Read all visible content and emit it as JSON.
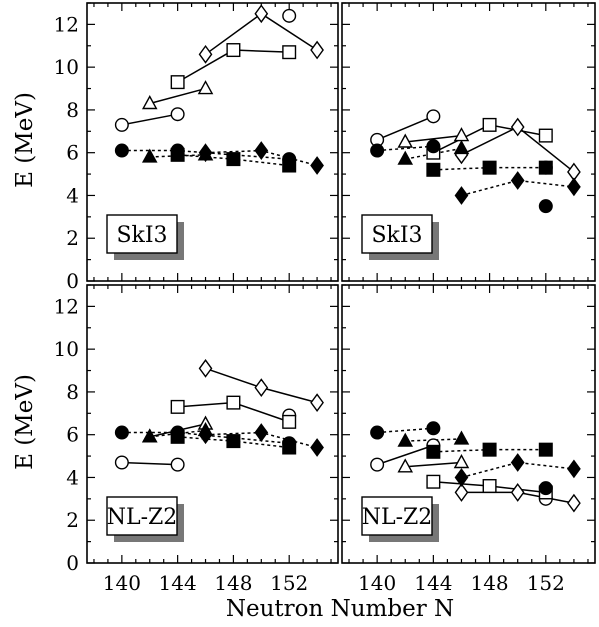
{
  "figure": {
    "ylabel": "E (MeV)",
    "xlabel": "Neutron Number N"
  },
  "colors": {
    "ink": "#000000",
    "paper": "#ffffff",
    "shadow": "#777777"
  },
  "chart_data": [
    {
      "type": "line",
      "panel": "top-left",
      "label": "SkI3",
      "xlim": [
        137.5,
        155.5
      ],
      "ylim": [
        0,
        13
      ],
      "xticks": [
        140,
        144,
        148,
        152
      ],
      "yticks": [
        0,
        2,
        4,
        6,
        8,
        10,
        12
      ],
      "grid": false,
      "series": [
        {
          "marker": "open-circle",
          "line": "solid",
          "x": [
            140,
            144
          ],
          "y": [
            7.3,
            7.8
          ]
        },
        {
          "marker": "open-circle",
          "line": "none",
          "x": [
            152
          ],
          "y": [
            12.4
          ]
        },
        {
          "marker": "open-triangle",
          "line": "solid",
          "x": [
            142,
            146
          ],
          "y": [
            8.3,
            9.0
          ]
        },
        {
          "marker": "open-square",
          "line": "solid",
          "x": [
            144,
            148,
            152
          ],
          "y": [
            9.3,
            10.8,
            10.7
          ]
        },
        {
          "marker": "open-diamond",
          "line": "solid",
          "x": [
            146,
            150,
            154
          ],
          "y": [
            10.6,
            12.5,
            10.8
          ]
        },
        {
          "marker": "filled-circle",
          "line": "dotted",
          "x": [
            140,
            144,
            152
          ],
          "y": [
            6.1,
            6.1,
            5.7
          ]
        },
        {
          "marker": "filled-triangle",
          "line": "dotted",
          "x": [
            142,
            146
          ],
          "y": [
            5.8,
            5.9
          ]
        },
        {
          "marker": "filled-square",
          "line": "dotted",
          "x": [
            144,
            148,
            152
          ],
          "y": [
            5.9,
            5.7,
            5.4
          ]
        },
        {
          "marker": "filled-diamond",
          "line": "dotted",
          "x": [
            146,
            150,
            154
          ],
          "y": [
            6.0,
            6.1,
            5.4
          ]
        }
      ]
    },
    {
      "type": "line",
      "panel": "top-right",
      "label": "SkI3",
      "xlim": [
        137.5,
        155.5
      ],
      "ylim": [
        0,
        13
      ],
      "xticks": [
        140,
        144,
        148,
        152
      ],
      "yticks": [
        0,
        2,
        4,
        6,
        8,
        10,
        12
      ],
      "grid": false,
      "series": [
        {
          "marker": "open-circle",
          "line": "solid",
          "x": [
            140,
            144
          ],
          "y": [
            6.6,
            7.7
          ]
        },
        {
          "marker": "open-circle",
          "line": "none",
          "x": [
            152
          ],
          "y": [
            5.3
          ]
        },
        {
          "marker": "open-triangle",
          "line": "solid",
          "x": [
            142,
            146
          ],
          "y": [
            6.5,
            6.8
          ]
        },
        {
          "marker": "open-square",
          "line": "solid",
          "x": [
            144,
            148,
            152
          ],
          "y": [
            6.0,
            7.3,
            6.8
          ]
        },
        {
          "marker": "open-diamond",
          "line": "solid",
          "x": [
            146,
            150,
            154
          ],
          "y": [
            5.9,
            7.2,
            5.1
          ]
        },
        {
          "marker": "filled-circle",
          "line": "dotted",
          "x": [
            140,
            144
          ],
          "y": [
            6.1,
            6.3
          ]
        },
        {
          "marker": "filled-circle",
          "line": "none",
          "x": [
            152
          ],
          "y": [
            3.5
          ]
        },
        {
          "marker": "filled-triangle",
          "line": "dotted",
          "x": [
            142,
            146
          ],
          "y": [
            5.7,
            6.2
          ]
        },
        {
          "marker": "filled-square",
          "line": "dotted",
          "x": [
            144,
            148,
            152
          ],
          "y": [
            5.2,
            5.3,
            5.3
          ]
        },
        {
          "marker": "filled-diamond",
          "line": "dotted",
          "x": [
            146,
            150,
            154
          ],
          "y": [
            4.0,
            4.7,
            4.4
          ]
        }
      ]
    },
    {
      "type": "line",
      "panel": "bottom-left",
      "label": "NL-Z2",
      "xlim": [
        137.5,
        155.5
      ],
      "ylim": [
        0,
        13
      ],
      "xticks": [
        140,
        144,
        148,
        152
      ],
      "yticks": [
        0,
        2,
        4,
        6,
        8,
        10,
        12
      ],
      "grid": false,
      "series": [
        {
          "marker": "open-circle",
          "line": "solid",
          "x": [
            140,
            144
          ],
          "y": [
            4.7,
            4.6
          ]
        },
        {
          "marker": "open-circle",
          "line": "none",
          "x": [
            152
          ],
          "y": [
            6.9
          ]
        },
        {
          "marker": "open-triangle",
          "line": "solid",
          "x": [
            142,
            146
          ],
          "y": [
            5.9,
            6.5
          ]
        },
        {
          "marker": "open-square",
          "line": "solid",
          "x": [
            144,
            148,
            152
          ],
          "y": [
            7.3,
            7.5,
            6.6
          ]
        },
        {
          "marker": "open-diamond",
          "line": "solid",
          "x": [
            146,
            150,
            154
          ],
          "y": [
            9.1,
            8.2,
            7.5
          ]
        },
        {
          "marker": "filled-circle",
          "line": "dotted",
          "x": [
            140,
            144,
            152
          ],
          "y": [
            6.1,
            6.1,
            5.6
          ]
        },
        {
          "marker": "filled-triangle",
          "line": "dotted",
          "x": [
            142,
            146
          ],
          "y": [
            5.9,
            6.2
          ]
        },
        {
          "marker": "filled-square",
          "line": "dotted",
          "x": [
            144,
            148,
            152
          ],
          "y": [
            5.9,
            5.7,
            5.4
          ]
        },
        {
          "marker": "filled-diamond",
          "line": "dotted",
          "x": [
            146,
            150,
            154
          ],
          "y": [
            6.0,
            6.1,
            5.4
          ]
        }
      ]
    },
    {
      "type": "line",
      "panel": "bottom-right",
      "label": "NL-Z2",
      "xlim": [
        137.5,
        155.5
      ],
      "ylim": [
        0,
        13
      ],
      "xticks": [
        140,
        144,
        148,
        152
      ],
      "yticks": [
        0,
        2,
        4,
        6,
        8,
        10,
        12
      ],
      "grid": false,
      "series": [
        {
          "marker": "open-circle",
          "line": "solid",
          "x": [
            140,
            144
          ],
          "y": [
            4.6,
            5.5
          ]
        },
        {
          "marker": "open-circle",
          "line": "none",
          "x": [
            152
          ],
          "y": [
            3.0
          ]
        },
        {
          "marker": "open-triangle",
          "line": "solid",
          "x": [
            142,
            146
          ],
          "y": [
            4.5,
            4.7
          ]
        },
        {
          "marker": "open-square",
          "line": "solid",
          "x": [
            144,
            148,
            152
          ],
          "y": [
            3.8,
            3.6,
            3.3
          ]
        },
        {
          "marker": "open-diamond",
          "line": "solid",
          "x": [
            146,
            150,
            154
          ],
          "y": [
            3.3,
            3.3,
            2.8
          ]
        },
        {
          "marker": "filled-circle",
          "line": "dotted",
          "x": [
            140,
            144
          ],
          "y": [
            6.1,
            6.3
          ]
        },
        {
          "marker": "filled-circle",
          "line": "none",
          "x": [
            152
          ],
          "y": [
            3.5
          ]
        },
        {
          "marker": "filled-triangle",
          "line": "dotted",
          "x": [
            142,
            146
          ],
          "y": [
            5.7,
            5.8
          ]
        },
        {
          "marker": "filled-square",
          "line": "dotted",
          "x": [
            144,
            148,
            152
          ],
          "y": [
            5.2,
            5.3,
            5.3
          ]
        },
        {
          "marker": "filled-diamond",
          "line": "dotted",
          "x": [
            146,
            150,
            154
          ],
          "y": [
            4.0,
            4.7,
            4.4
          ]
        }
      ]
    }
  ]
}
